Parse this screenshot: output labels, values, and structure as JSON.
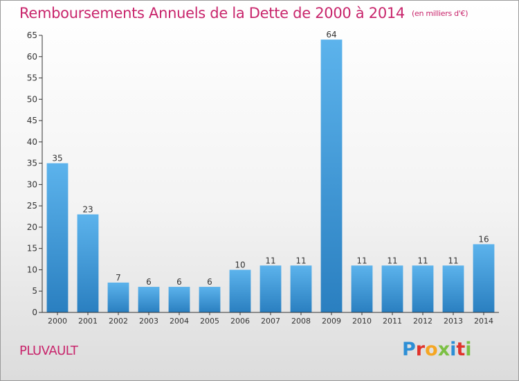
{
  "header": {
    "title": "Remboursements Annuels de la Dette de 2000 à 2014",
    "unit": "(en milliers d'€)"
  },
  "footer": {
    "place": "PLUVAULT",
    "logo_text": "Proxiti"
  },
  "colors": {
    "title": "#c8246b",
    "bar_top": "#5cb3ec",
    "bar_bottom": "#2a7fc0",
    "axis": "#333333"
  },
  "chart_data": {
    "type": "bar",
    "title": "Remboursements Annuels de la Dette de 2000 à 2014",
    "subtitle": "(en milliers d'€)",
    "xlabel": "",
    "ylabel": "",
    "categories": [
      "2000",
      "2001",
      "2002",
      "2003",
      "2004",
      "2005",
      "2006",
      "2007",
      "2008",
      "2009",
      "2010",
      "2011",
      "2012",
      "2013",
      "2014"
    ],
    "values": [
      35,
      23,
      7,
      6,
      6,
      6,
      10,
      11,
      11,
      64,
      11,
      11,
      11,
      11,
      16
    ],
    "ylim": [
      0,
      65
    ],
    "yticks": [
      0,
      5,
      10,
      15,
      20,
      25,
      30,
      35,
      40,
      45,
      50,
      55,
      60,
      65
    ],
    "grid": false,
    "data_labels": true,
    "legend": "none"
  }
}
